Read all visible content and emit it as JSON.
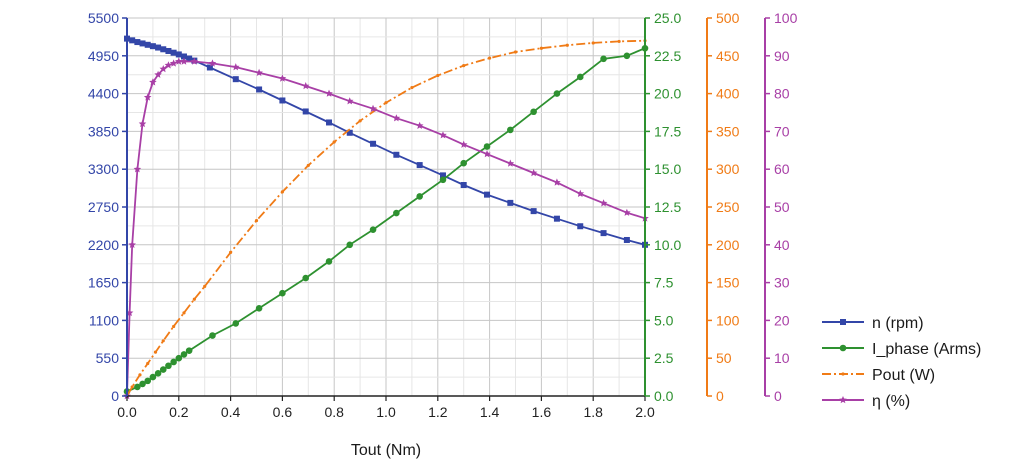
{
  "chart_data": {
    "type": "line",
    "xlabel": "Tout (Nm)",
    "xlim": [
      0.0,
      2.0
    ],
    "x_ticks": [
      "0.0",
      "0.2",
      "0.4",
      "0.6",
      "0.8",
      "1.0",
      "1.2",
      "1.4",
      "1.6",
      "1.8",
      "2.0"
    ],
    "grid": true,
    "legend_position": "right",
    "axes": [
      {
        "id": "n",
        "color": "#3346a8",
        "ylim": [
          0,
          5500
        ],
        "ticks": [
          "0",
          "550",
          "1100",
          "1650",
          "2200",
          "2750",
          "3300",
          "3850",
          "4400",
          "4950",
          "5500"
        ]
      },
      {
        "id": "i",
        "color": "#2e9130",
        "ylim": [
          0,
          25
        ],
        "ticks": [
          "0.0",
          "2.5",
          "5.0",
          "7.5",
          "10.0",
          "12.5",
          "15.0",
          "17.5",
          "20.0",
          "22.5",
          "25.0"
        ]
      },
      {
        "id": "p",
        "color": "#f07b16",
        "ylim": [
          0,
          500
        ],
        "ticks": [
          "0",
          "50",
          "100",
          "150",
          "200",
          "250",
          "300",
          "350",
          "400",
          "450",
          "500"
        ]
      },
      {
        "id": "eta",
        "color": "#a83fa6",
        "ylim": [
          0,
          100
        ],
        "ticks": [
          "0",
          "10",
          "20",
          "30",
          "40",
          "50",
          "60",
          "70",
          "80",
          "90",
          "100"
        ]
      }
    ],
    "series": [
      {
        "name": "n (rpm)",
        "axis": "n",
        "color": "#3346a8",
        "marker": "square",
        "x": [
          0.0,
          0.02,
          0.04,
          0.06,
          0.08,
          0.1,
          0.12,
          0.14,
          0.16,
          0.18,
          0.2,
          0.22,
          0.24,
          0.26,
          0.32,
          0.42,
          0.51,
          0.6,
          0.69,
          0.78,
          0.86,
          0.95,
          1.04,
          1.13,
          1.22,
          1.3,
          1.39,
          1.48,
          1.57,
          1.66,
          1.75,
          1.84,
          1.93,
          2.0
        ],
        "values": [
          5200,
          5175,
          5150,
          5130,
          5110,
          5090,
          5070,
          5045,
          5020,
          4995,
          4970,
          4940,
          4910,
          4880,
          4780,
          4610,
          4460,
          4300,
          4140,
          3980,
          3830,
          3670,
          3510,
          3360,
          3210,
          3070,
          2930,
          2810,
          2690,
          2580,
          2470,
          2370,
          2270,
          2200
        ]
      },
      {
        "name": "I_phase (Arms)",
        "axis": "i",
        "color": "#2e9130",
        "marker": "circle",
        "x": [
          0.0,
          0.04,
          0.06,
          0.08,
          0.1,
          0.12,
          0.14,
          0.16,
          0.18,
          0.2,
          0.22,
          0.24,
          0.33,
          0.42,
          0.51,
          0.6,
          0.69,
          0.78,
          0.86,
          0.95,
          1.04,
          1.13,
          1.22,
          1.3,
          1.39,
          1.48,
          1.57,
          1.66,
          1.75,
          1.84,
          1.93,
          2.0
        ],
        "values": [
          0.3,
          0.6,
          0.8,
          1.0,
          1.25,
          1.5,
          1.75,
          2.0,
          2.25,
          2.5,
          2.75,
          3.0,
          4.0,
          4.8,
          5.8,
          6.8,
          7.8,
          8.9,
          10.0,
          11.0,
          12.1,
          13.2,
          14.3,
          15.4,
          16.5,
          17.6,
          18.8,
          20.0,
          21.1,
          22.3,
          22.5,
          23.0
        ]
      },
      {
        "name": "Pout (W)",
        "axis": "p",
        "color": "#f07b16",
        "marker": "dot",
        "x": [
          0.0,
          0.02,
          0.05,
          0.08,
          0.11,
          0.14,
          0.18,
          0.22,
          0.26,
          0.3,
          0.4,
          0.5,
          0.6,
          0.7,
          0.8,
          0.9,
          1.0,
          1.1,
          1.2,
          1.3,
          1.4,
          1.5,
          1.6,
          1.7,
          1.8,
          1.9,
          2.0
        ],
        "values": [
          0,
          12,
          28,
          43,
          58,
          73,
          92,
          110,
          128,
          145,
          190,
          232,
          270,
          305,
          336,
          364,
          388,
          408,
          424,
          437,
          447,
          455,
          460,
          464,
          467,
          469,
          470
        ]
      },
      {
        "name": "η (%)",
        "axis": "eta",
        "color": "#a83fa6",
        "marker": "star",
        "x": [
          0.0,
          0.01,
          0.02,
          0.04,
          0.06,
          0.08,
          0.1,
          0.12,
          0.14,
          0.16,
          0.18,
          0.2,
          0.22,
          0.26,
          0.33,
          0.42,
          0.51,
          0.6,
          0.69,
          0.78,
          0.86,
          0.95,
          1.04,
          1.13,
          1.22,
          1.3,
          1.39,
          1.48,
          1.57,
          1.66,
          1.75,
          1.84,
          1.93,
          2.0
        ],
        "values": [
          0,
          22,
          40,
          60,
          72,
          79,
          83,
          85,
          86.5,
          87.5,
          88,
          88.5,
          88.5,
          88.5,
          88,
          87,
          85.5,
          84,
          82,
          80,
          78,
          76,
          73.5,
          71.5,
          69,
          66.5,
          64,
          61.5,
          59,
          56.5,
          53.5,
          51,
          48.5,
          47
        ]
      }
    ],
    "legend": [
      "n (rpm)",
      "I_phase (Arms)",
      "Pout (W)",
      "η (%)"
    ]
  }
}
